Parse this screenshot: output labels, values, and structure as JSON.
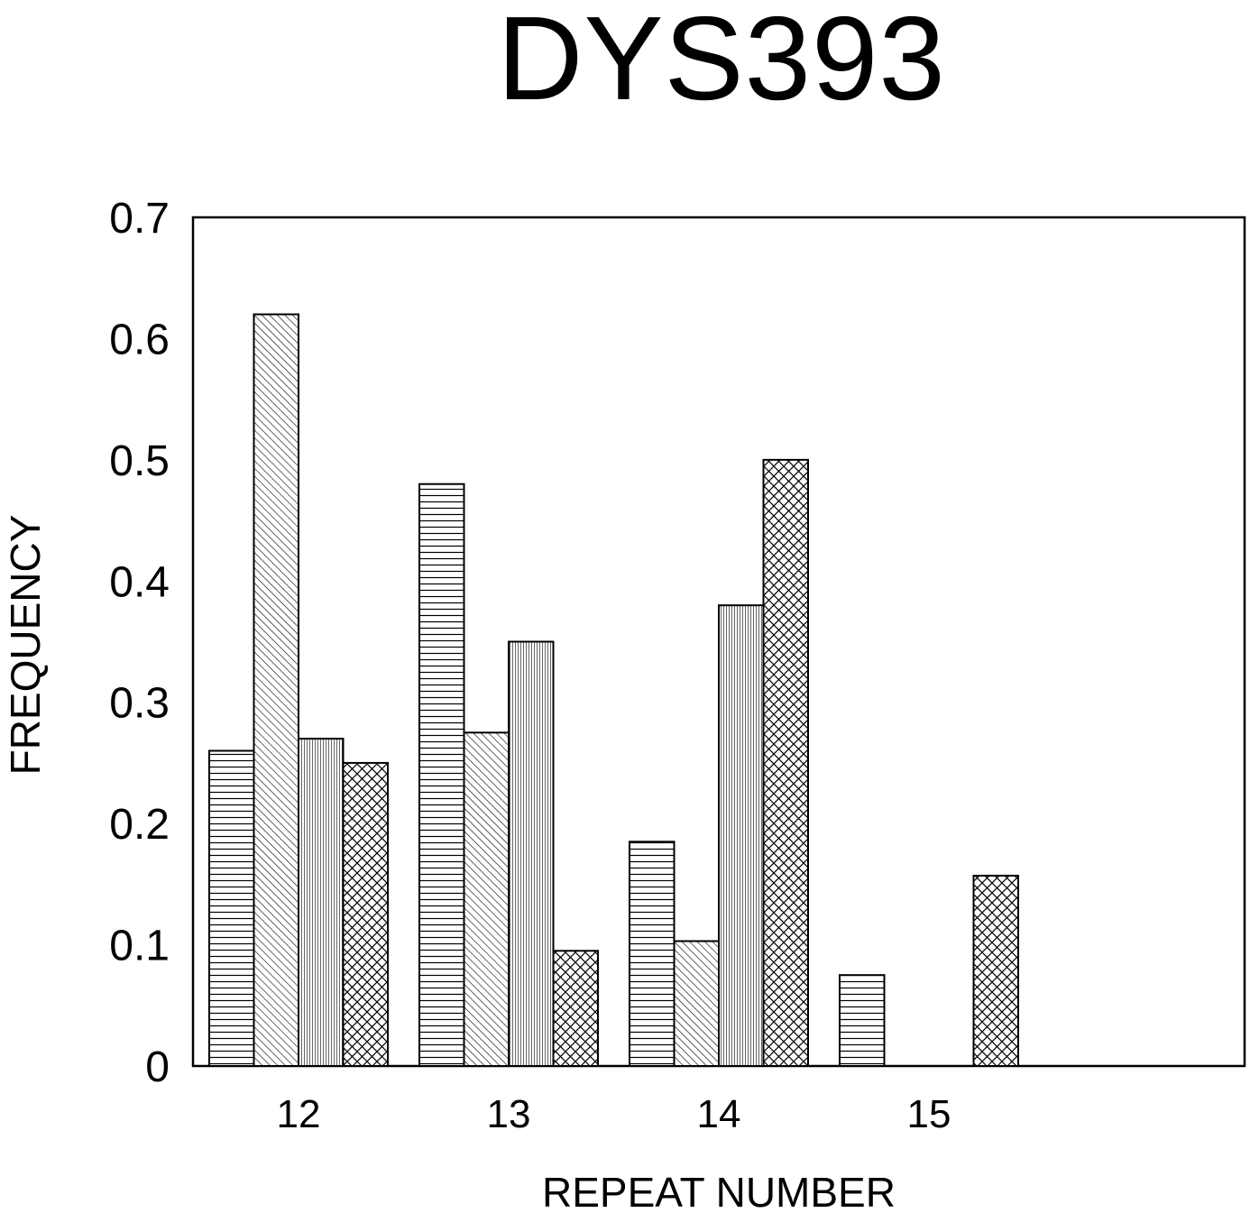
{
  "chart_data": {
    "type": "bar",
    "title": "DYS393",
    "xlabel": "REPEAT NUMBER",
    "ylabel": "FREQUENCY",
    "categories": [
      "12",
      "13",
      "14",
      "15"
    ],
    "series": [
      {
        "pattern": "horizontal-lines",
        "values": [
          0.26,
          0.48,
          0.185,
          0.075
        ]
      },
      {
        "pattern": "diagonal-lines",
        "values": [
          0.62,
          0.275,
          0.103,
          0
        ]
      },
      {
        "pattern": "vertical-lines",
        "values": [
          0.27,
          0.35,
          0.38,
          0
        ]
      },
      {
        "pattern": "crosshatch",
        "values": [
          0.25,
          0.095,
          0.5,
          0.157
        ]
      }
    ],
    "yticks": [
      "0",
      "0.1",
      "0.2",
      "0.3",
      "0.4",
      "0.5",
      "0.6",
      "0.7"
    ],
    "ylim": [
      0,
      0.7
    ],
    "grid": false,
    "legend": "none"
  }
}
